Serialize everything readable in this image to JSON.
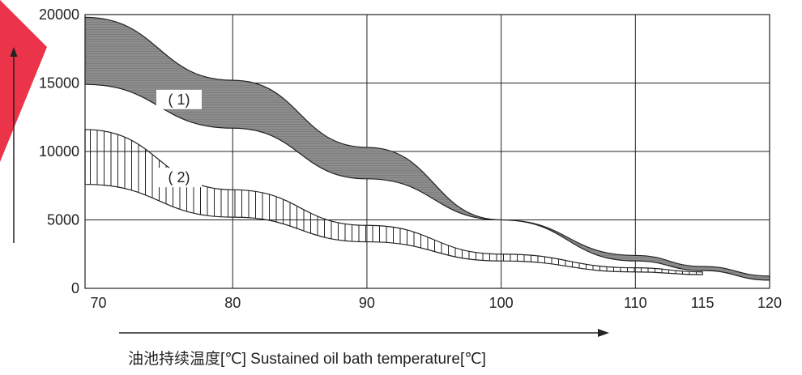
{
  "chart_data": {
    "type": "area",
    "xlabel": "油池持续温度[℃] Sustained oil bath temperature[℃]",
    "ylabel": "",
    "x_ticks": [
      70,
      80,
      90,
      100,
      110,
      115,
      120
    ],
    "y_ticks": [
      0,
      5000,
      10000,
      15000,
      20000
    ],
    "xlim": [
      69,
      120
    ],
    "ylim": [
      0,
      20000
    ],
    "grid": true,
    "bands": [
      {
        "label": "( 1)",
        "fill": "hatched-dark",
        "upper": {
          "x": [
            69,
            80,
            90,
            100,
            110,
            115,
            120
          ],
          "y": [
            19800,
            15200,
            10300,
            5000,
            2400,
            1600,
            900
          ]
        },
        "lower": {
          "x": [
            69,
            80,
            90,
            100,
            110,
            115,
            120
          ],
          "y": [
            14900,
            11700,
            8000,
            5000,
            2000,
            1300,
            600
          ]
        }
      },
      {
        "label": "( 2)",
        "fill": "vertical-lines",
        "upper": {
          "x": [
            69,
            80,
            90,
            100,
            110,
            115
          ],
          "y": [
            11600,
            7200,
            4600,
            2500,
            1500,
            1200
          ]
        },
        "lower": {
          "x": [
            69,
            80,
            90,
            100,
            110,
            115
          ],
          "y": [
            7600,
            5200,
            3400,
            2000,
            1200,
            1000
          ]
        }
      }
    ]
  },
  "colors": {
    "band1_fill": "#8a8a8a",
    "grid": "#222222",
    "accent_arrow": "#e8102a"
  }
}
